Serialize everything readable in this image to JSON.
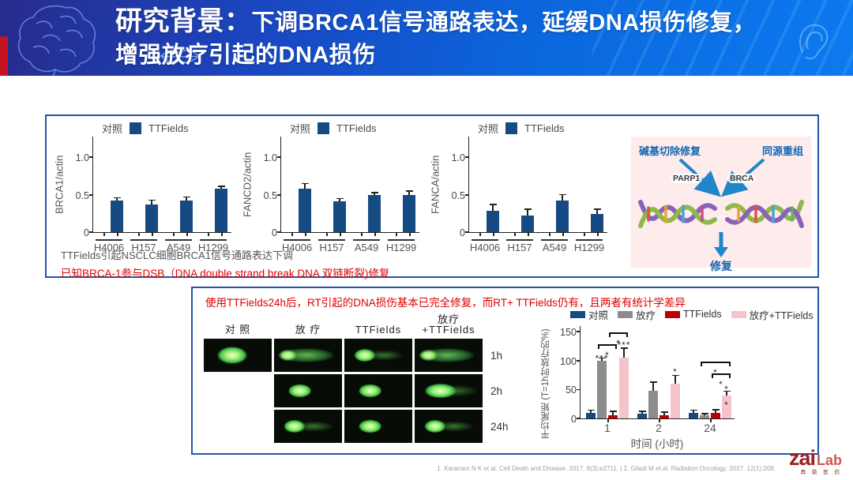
{
  "header": {
    "title_prefix": "研究背景：",
    "title_rest_line1": "下调BRCA1信号通路表达，延缓DNA损伤修复，",
    "title_line2": "增强放疗引起的DNA损伤"
  },
  "panel1": {
    "note_gray": "TTFields引起NSCLC细胞BRCA1信号通路表达下调",
    "note_red": "已知BRCA-1参与DSB（DNA double strand break DNA 双链断裂)修复",
    "diagram": {
      "top_left": "碱基切除修复",
      "top_right": "同源重组",
      "node_left": "PARP1",
      "node_right": "BRCA",
      "bottom": "修复"
    }
  },
  "panel2": {
    "note_red": "使用TTFields24h后，RT引起的DNA损伤基本已完全修复，而RT+ TTFields仍有，且两者有统计学差异",
    "comet": {
      "columns": [
        "对 照",
        "放 疗",
        "TTFields",
        "放疗\n+TTFields"
      ],
      "row_labels": [
        "1h",
        "2h",
        "24h"
      ],
      "cells": [
        [
          "round",
          "comet",
          "blob_tail",
          "comet"
        ],
        [
          "none",
          "blob",
          "blob",
          "wide"
        ],
        [
          "none",
          "blob_tail",
          "blob",
          "blob_tail"
        ]
      ]
    }
  },
  "chart_data": [
    {
      "type": "bar",
      "ylabel": "BRCA1/actin",
      "categories": [
        "H4006",
        "H157",
        "A549",
        "H1299"
      ],
      "series": [
        {
          "name": "对照",
          "values": [
            0,
            0,
            0,
            0
          ]
        },
        {
          "name": "TTFields",
          "color": "#154a82",
          "values": [
            0.42,
            0.37,
            0.42,
            0.58
          ],
          "errors": [
            0.03,
            0.05,
            0.04,
            0.02
          ]
        }
      ],
      "ylim": [
        0,
        1.25
      ],
      "yticks": [
        {
          "v": 0,
          "label": "0"
        },
        {
          "v": 0.5,
          "label": "0.5"
        },
        {
          "v": 1,
          "label": "1.0"
        }
      ]
    },
    {
      "type": "bar",
      "ylabel": "FANCD2/actin",
      "categories": [
        "H4006",
        "H157",
        "A549",
        "H1299"
      ],
      "series": [
        {
          "name": "对照",
          "values": [
            0,
            0,
            0,
            0
          ]
        },
        {
          "name": "TTFields",
          "color": "#154a82",
          "values": [
            0.58,
            0.41,
            0.5,
            0.5
          ],
          "errors": [
            0.06,
            0.03,
            0.02,
            0.04
          ]
        }
      ],
      "ylim": [
        0,
        1.25
      ],
      "yticks": [
        {
          "v": 0,
          "label": "0"
        },
        {
          "v": 0.5,
          "label": "0.5"
        },
        {
          "v": 1,
          "label": "1.0"
        }
      ]
    },
    {
      "type": "bar",
      "ylabel": "FANCA/actin",
      "categories": [
        "H4006",
        "H157",
        "A549",
        "H1299"
      ],
      "series": [
        {
          "name": "对照",
          "values": [
            0,
            0,
            0,
            0
          ]
        },
        {
          "name": "TTFields",
          "color": "#154a82",
          "values": [
            0.28,
            0.22,
            0.42,
            0.24
          ],
          "errors": [
            0.08,
            0.08,
            0.07,
            0.06
          ]
        }
      ],
      "ylim": [
        0,
        1.25
      ],
      "yticks": [
        {
          "v": 0,
          "label": "0"
        },
        {
          "v": 0.5,
          "label": "0.5"
        },
        {
          "v": 1,
          "label": "1.0"
        }
      ]
    },
    {
      "type": "bar",
      "ylabel": "平均尾矩 (T=1h时放疗的%)",
      "xlabel": "时间 (小时)",
      "categories": [
        "1",
        "2",
        "24"
      ],
      "series": [
        {
          "name": "对照",
          "color": "#154a82",
          "values": [
            9,
            8,
            9
          ],
          "errors": [
            4,
            3,
            4
          ]
        },
        {
          "name": "放疗",
          "color": "#8c8c8c",
          "values": [
            100,
            48,
            5
          ],
          "errors": [
            3,
            14,
            2
          ]
        },
        {
          "name": "TTFields",
          "color": "#c00000",
          "values": [
            6,
            6,
            10
          ],
          "errors": [
            5,
            4,
            4
          ]
        },
        {
          "name": "放疗+TTFields",
          "color": "#f5c3ca",
          "values": [
            105,
            60,
            40
          ],
          "errors": [
            15,
            13,
            6
          ]
        }
      ],
      "ylim": [
        0,
        160
      ],
      "yticks": [
        {
          "v": 0,
          "label": "0"
        },
        {
          "v": 50,
          "label": "50"
        },
        {
          "v": 100,
          "label": "100"
        },
        {
          "v": 150,
          "label": "150"
        }
      ],
      "annotations": {
        "bar_stars": [
          {
            "group": 0,
            "series": 1,
            "y": 101,
            "label": "***"
          },
          {
            "group": 0,
            "series": 3,
            "y": 124,
            "label": "***"
          },
          {
            "group": 1,
            "series": 3,
            "y": 78,
            "label": "*"
          },
          {
            "group": 2,
            "series": 3,
            "y": 48,
            "label": "*"
          },
          {
            "group": 2,
            "series": 3,
            "y": 20,
            "label": "*"
          }
        ],
        "brackets": [
          {
            "group": 0,
            "from": 1,
            "to": 2,
            "y": 120,
            "label": "*"
          },
          {
            "group": 0,
            "from": 2,
            "to": 3,
            "y": 140,
            "label": "*"
          },
          {
            "group": 2,
            "from": 1,
            "to": 3,
            "y": 90,
            "label": "*"
          },
          {
            "group": 2,
            "from": 2,
            "to": 3,
            "y": 70,
            "label": "*"
          }
        ]
      }
    }
  ],
  "footer": {
    "citation": "1. Karanam N K et al. Cell Death and Disease. 2017. 8(3):e2711. | 2. Giladi M et al. Radiation Oncology. 2017. 12(1):206.",
    "logo": {
      "zai": "zai",
      "lab": "Lab",
      "cn": "再 鼎 医 药"
    }
  },
  "colors": {
    "panel_border": "#2355a4",
    "bar_navy": "#154a82",
    "text_red": "#e00000",
    "header_left": "#272b8c",
    "header_right": "#0d7af0",
    "pink_panel": "#fdeceb",
    "diagram_blue": "#1567b3"
  }
}
